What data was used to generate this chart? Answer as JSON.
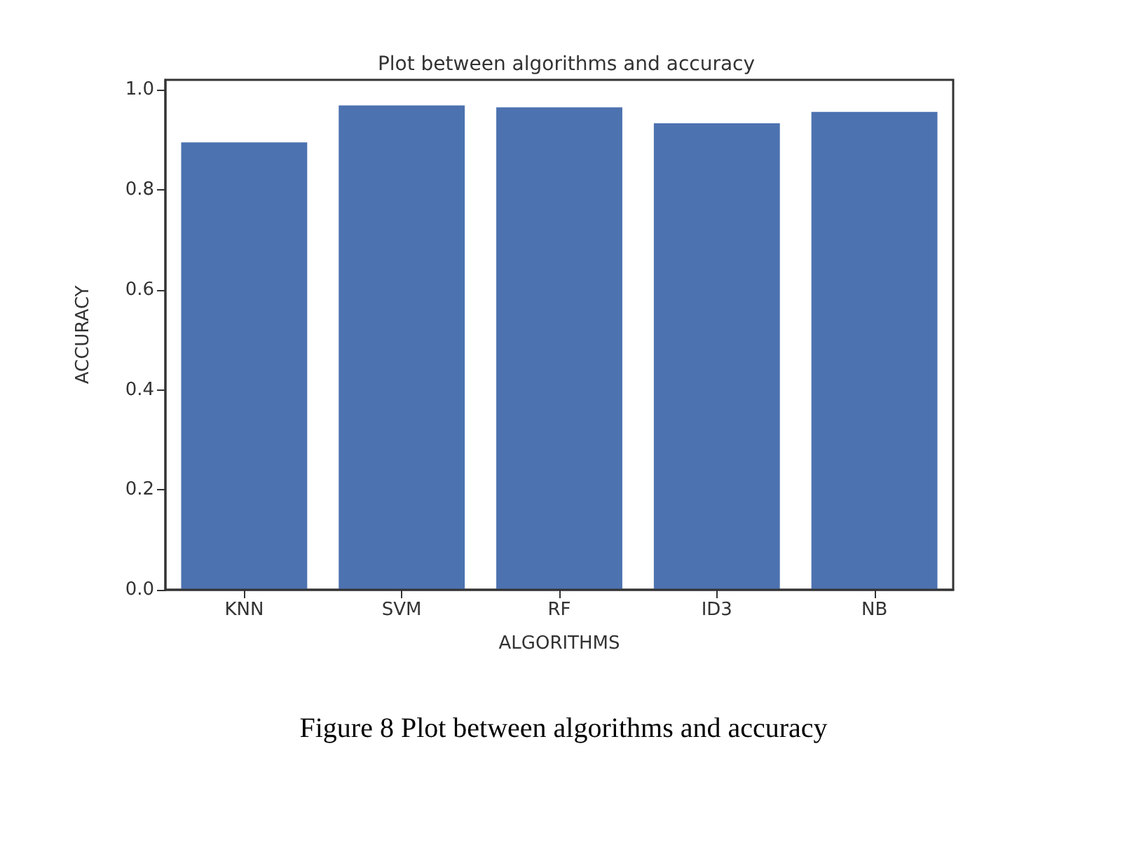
{
  "chart_data": {
    "type": "bar",
    "title": "Plot between algorithms and accuracy",
    "xlabel": "ALGORITHMS",
    "ylabel": "ACCURACY",
    "categories": [
      "KNN",
      "SVM",
      "RF",
      "ID3",
      "NB"
    ],
    "values": [
      0.895,
      0.969,
      0.965,
      0.933,
      0.956
    ],
    "color": "#4c72b0",
    "ylim": [
      0,
      1.02
    ],
    "yticks": [
      {
        "value": 0,
        "label": "0.0"
      },
      0.2,
      0.4,
      0.6,
      0.8,
      {
        "value": 1,
        "label": "1.0"
      }
    ],
    "grid": false,
    "annotations": [
      "Figure 8 Plot between algorithms and accuracy"
    ]
  }
}
